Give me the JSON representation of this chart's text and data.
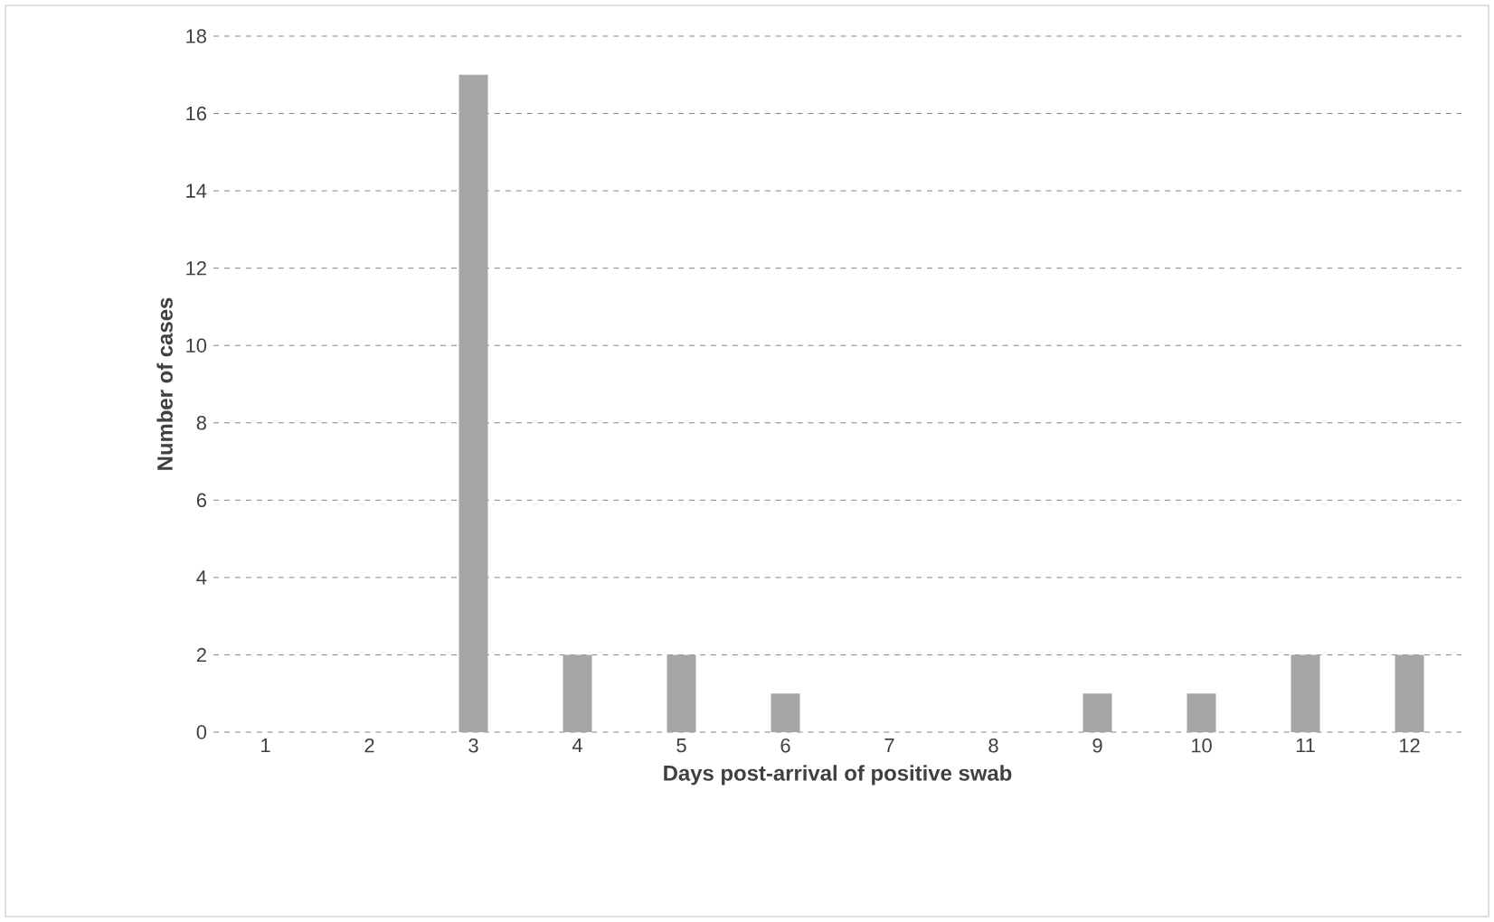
{
  "chart_data": {
    "type": "bar",
    "xlabel": "Days post-arrival of positive swab",
    "ylabel": "Number of cases",
    "categories": [
      "1",
      "2",
      "3",
      "4",
      "5",
      "6",
      "7",
      "8",
      "9",
      "10",
      "11",
      "12"
    ],
    "values": [
      0,
      0,
      17,
      2,
      2,
      1,
      0,
      0,
      1,
      1,
      2,
      2
    ],
    "color": "#a6a6a6",
    "ylim": [
      0,
      18
    ],
    "yticks": [
      0,
      2,
      4,
      6,
      8,
      10,
      12,
      14,
      16,
      18
    ],
    "grid": "y"
  }
}
